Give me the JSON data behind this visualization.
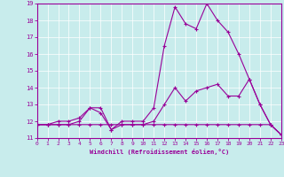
{
  "bg_color": "#c8ecec",
  "line_color": "#990099",
  "xlabel": "Windchill (Refroidissement éolien,°C)",
  "xlim": [
    0,
    23
  ],
  "ylim": [
    11,
    19
  ],
  "yticks": [
    11,
    12,
    13,
    14,
    15,
    16,
    17,
    18,
    19
  ],
  "xticks": [
    0,
    1,
    2,
    3,
    4,
    5,
    6,
    7,
    8,
    9,
    10,
    11,
    12,
    13,
    14,
    15,
    16,
    17,
    18,
    19,
    20,
    21,
    22,
    23
  ],
  "line1_x": [
    0,
    1,
    2,
    3,
    4,
    5,
    6,
    7,
    8,
    9,
    10,
    11,
    12,
    13,
    14,
    15,
    16,
    17,
    18,
    19,
    20,
    21,
    22,
    23
  ],
  "line1_y": [
    11.8,
    11.8,
    11.8,
    11.8,
    11.8,
    11.8,
    11.8,
    11.8,
    11.8,
    11.8,
    11.8,
    11.8,
    11.8,
    11.8,
    11.8,
    11.8,
    11.8,
    11.8,
    11.8,
    11.8,
    11.8,
    11.8,
    11.8,
    11.2
  ],
  "line2_x": [
    0,
    1,
    2,
    3,
    4,
    5,
    6,
    7,
    8,
    9,
    10,
    11,
    12,
    13,
    14,
    15,
    16,
    17,
    18,
    19,
    20,
    21,
    22,
    23
  ],
  "line2_y": [
    11.8,
    11.8,
    12.0,
    12.0,
    12.2,
    12.8,
    12.8,
    11.5,
    12.0,
    12.0,
    12.0,
    12.8,
    16.5,
    18.8,
    17.8,
    17.5,
    19.0,
    18.0,
    17.3,
    16.0,
    14.5,
    13.0,
    11.8,
    11.2
  ],
  "line3_x": [
    0,
    1,
    2,
    3,
    4,
    5,
    6,
    7,
    8,
    9,
    10,
    11,
    12,
    13,
    14,
    15,
    16,
    17,
    18,
    19,
    20,
    21,
    22,
    23
  ],
  "line3_y": [
    11.8,
    11.8,
    11.8,
    11.8,
    12.0,
    12.8,
    12.5,
    11.5,
    11.8,
    11.8,
    11.8,
    12.0,
    13.0,
    14.0,
    13.2,
    13.8,
    14.0,
    14.2,
    13.5,
    13.5,
    14.5,
    13.0,
    11.8,
    11.2
  ]
}
